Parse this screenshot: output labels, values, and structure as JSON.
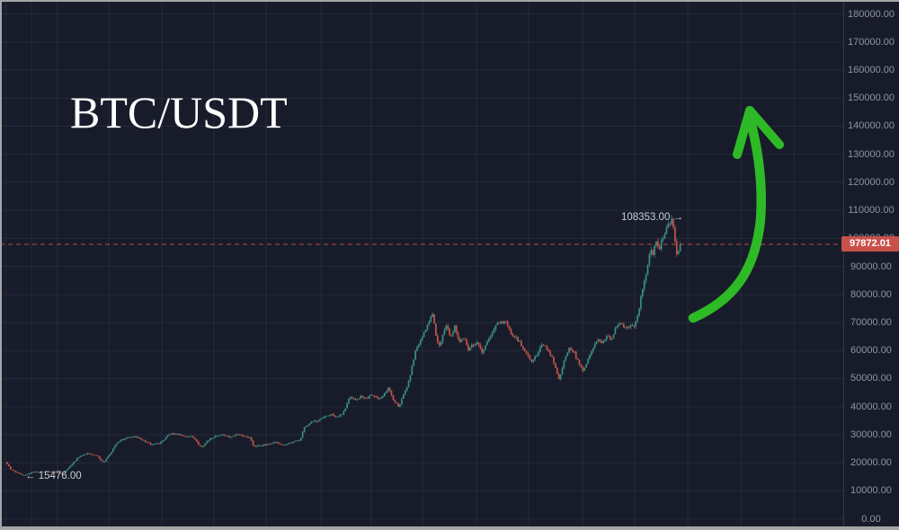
{
  "window": {
    "frame_color": "#a4a6a8"
  },
  "chart": {
    "title": "BTC/USDT",
    "price_badge": "97872.01",
    "annotations": {
      "high_label": "108353.00 →",
      "low_label": "← 15476.00"
    },
    "colors": {
      "background": "#181c2a",
      "grid": "rgba(150,165,220,0.10)",
      "axis_separator": "rgba(150,165,220,0.22)",
      "axis_text": "#9094a0",
      "annotation_text": "#c9cdd4",
      "title_text": "#ffffff",
      "candle_up": "#3a9081",
      "candle_down": "#c2554e",
      "price_line": "#c9504b",
      "arrow": "#2eba26"
    }
  },
  "chart_data": {
    "type": "candlestick",
    "symbol": "BTC/USDT",
    "current_price": 97872.01,
    "marked_high": 108353.0,
    "marked_low": 15476.0,
    "y_axis": {
      "min": 0,
      "max": 180000,
      "tick_interval": 10000,
      "tick_labels": [
        "180000.00",
        "170000.00",
        "160000.00",
        "150000.00",
        "140000.00",
        "130000.00",
        "120000.00",
        "110000.00",
        "100000.00",
        "90000.00",
        "80000.00",
        "70000.00",
        "60000.00",
        "50000.00",
        "40000.00",
        "30000.00",
        "20000.00",
        "10000.00",
        "0.00"
      ]
    },
    "x_axis": {
      "labels_visible": false,
      "unit": "px"
    },
    "grid": true,
    "price_path": [
      [
        8,
        20300
      ],
      [
        14,
        17600
      ],
      [
        22,
        16300
      ],
      [
        28,
        15476
      ],
      [
        38,
        16600
      ],
      [
        50,
        16800
      ],
      [
        65,
        16600
      ],
      [
        72,
        16100
      ],
      [
        80,
        18900
      ],
      [
        90,
        22200
      ],
      [
        100,
        23400
      ],
      [
        110,
        22300
      ],
      [
        117,
        20100
      ],
      [
        124,
        23000
      ],
      [
        132,
        27300
      ],
      [
        142,
        28900
      ],
      [
        152,
        29400
      ],
      [
        160,
        28200
      ],
      [
        170,
        26400
      ],
      [
        180,
        27000
      ],
      [
        190,
        30100
      ],
      [
        198,
        30500
      ],
      [
        207,
        29400
      ],
      [
        216,
        29600
      ],
      [
        222,
        26800
      ],
      [
        226,
        25400
      ],
      [
        232,
        27600
      ],
      [
        240,
        29400
      ],
      [
        250,
        29900
      ],
      [
        258,
        29200
      ],
      [
        266,
        30300
      ],
      [
        274,
        29300
      ],
      [
        280,
        29100
      ],
      [
        284,
        25900
      ],
      [
        292,
        26100
      ],
      [
        300,
        26500
      ],
      [
        308,
        27300
      ],
      [
        314,
        26300
      ],
      [
        322,
        26800
      ],
      [
        330,
        27600
      ],
      [
        336,
        28300
      ],
      [
        340,
        32600
      ],
      [
        348,
        34400
      ],
      [
        356,
        35100
      ],
      [
        364,
        36900
      ],
      [
        371,
        37400
      ],
      [
        377,
        36300
      ],
      [
        384,
        37900
      ],
      [
        391,
        43700
      ],
      [
        397,
        42300
      ],
      [
        404,
        43600
      ],
      [
        410,
        43000
      ],
      [
        416,
        44200
      ],
      [
        422,
        42700
      ],
      [
        428,
        43900
      ],
      [
        434,
        46500
      ],
      [
        440,
        42000
      ],
      [
        446,
        39900
      ],
      [
        450,
        43500
      ],
      [
        455,
        47000
      ],
      [
        458,
        51000
      ],
      [
        461,
        55500
      ],
      [
        464,
        60000
      ],
      [
        468,
        62500
      ],
      [
        472,
        65500
      ],
      [
        476,
        68000
      ],
      [
        483,
        73400
      ],
      [
        487,
        64500
      ],
      [
        491,
        61000
      ],
      [
        495,
        66300
      ],
      [
        498,
        68900
      ],
      [
        503,
        65400
      ],
      [
        508,
        68600
      ],
      [
        513,
        63100
      ],
      [
        518,
        64700
      ],
      [
        523,
        59900
      ],
      [
        528,
        62200
      ],
      [
        533,
        62500
      ],
      [
        538,
        59300
      ],
      [
        543,
        62500
      ],
      [
        548,
        65400
      ],
      [
        552,
        68600
      ],
      [
        560,
        70200
      ],
      [
        565,
        70500
      ],
      [
        570,
        66300
      ],
      [
        580,
        63100
      ],
      [
        585,
        59900
      ],
      [
        593,
        55800
      ],
      [
        600,
        59000
      ],
      [
        605,
        62500
      ],
      [
        610,
        60600
      ],
      [
        617,
        56700
      ],
      [
        624,
        49000
      ],
      [
        630,
        57700
      ],
      [
        635,
        60900
      ],
      [
        640,
        59900
      ],
      [
        645,
        55800
      ],
      [
        650,
        52900
      ],
      [
        657,
        57700
      ],
      [
        662,
        61500
      ],
      [
        667,
        64100
      ],
      [
        672,
        62500
      ],
      [
        677,
        65400
      ],
      [
        682,
        64100
      ],
      [
        687,
        68600
      ],
      [
        692,
        70200
      ],
      [
        697,
        67300
      ],
      [
        702,
        68600
      ],
      [
        707,
        68900
      ],
      [
        710,
        70500
      ],
      [
        715,
        79200
      ],
      [
        718,
        84000
      ],
      [
        722,
        89700
      ],
      [
        725,
        96200
      ],
      [
        728,
        94600
      ],
      [
        732,
        98400
      ],
      [
        735,
        95200
      ],
      [
        738,
        100000
      ],
      [
        742,
        101600
      ],
      [
        745,
        104800
      ],
      [
        750,
        107400
      ],
      [
        753,
        98400
      ],
      [
        755,
        94200
      ],
      [
        758,
        97872
      ]
    ]
  }
}
